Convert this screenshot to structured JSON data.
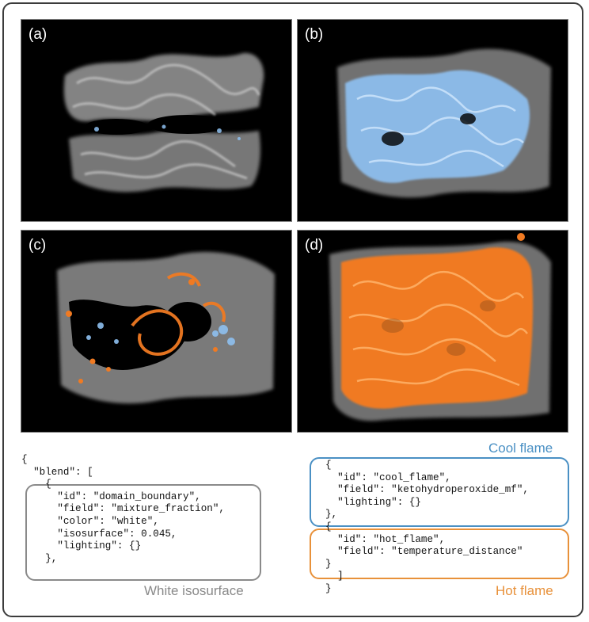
{
  "panels": [
    {
      "label": "(a)",
      "id": "a"
    },
    {
      "label": "(b)",
      "id": "b"
    },
    {
      "label": "(c)",
      "id": "c"
    },
    {
      "label": "(d)",
      "id": "d"
    }
  ],
  "colors": {
    "white_isosurface": "#8a8a8a",
    "cool_flame": "#4a90c4",
    "hot_flame": "#e8913a",
    "smoke": "#9a9a9a",
    "blue_surface": "#8ec0f0",
    "orange_surface": "#f07a22"
  },
  "left_code": {
    "lines": [
      "{",
      "  \"blend\": [",
      "    {",
      "      \"id\": \"domain_boundary\",",
      "      \"field\": \"mixture_fraction\",",
      "      \"color\": \"white\",",
      "      \"isosurface\": 0.045,",
      "      \"lighting\": {}",
      "    },"
    ]
  },
  "right_code": {
    "lines": [
      "{",
      "  \"id\": \"cool_flame\",",
      "  \"field\": \"ketohydroperoxide_mf\",",
      "  \"lighting\": {}",
      "},",
      "{",
      "  \"id\": \"hot_flame\",",
      "  \"field\": \"temperature_distance\"",
      "}",
      "  ]",
      "}"
    ]
  },
  "captions": {
    "white": "White isosurface",
    "cool": "Cool flame",
    "hot": "Hot flame"
  }
}
